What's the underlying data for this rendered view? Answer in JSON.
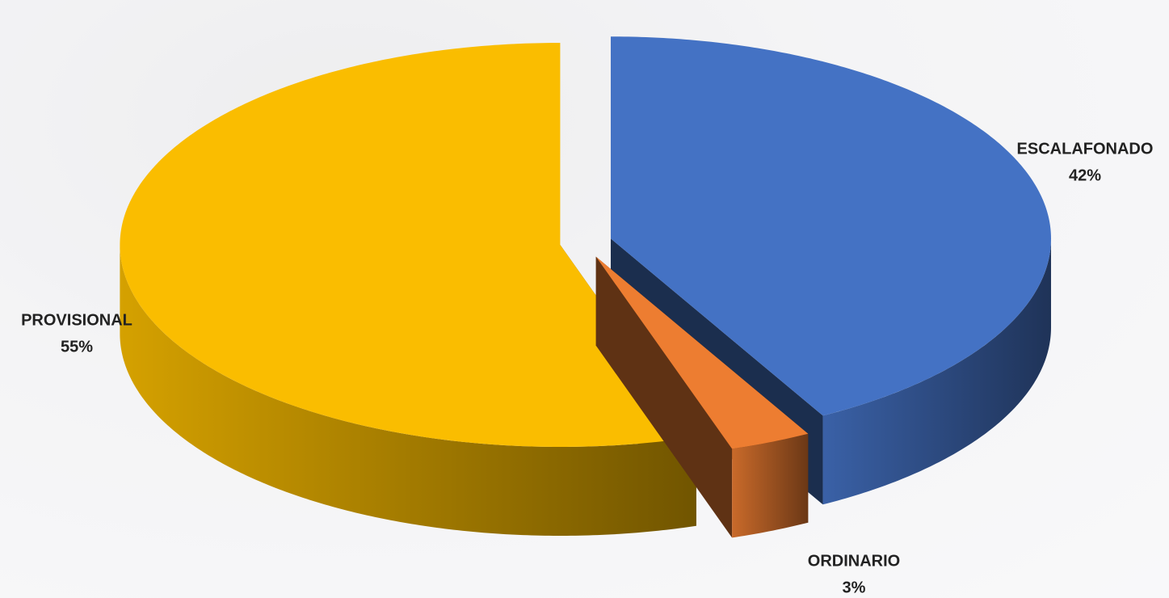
{
  "chart_data": {
    "type": "pie3d",
    "categories": [
      "ESCALAFONADO",
      "ORDINARIO",
      "PROVISIONAL"
    ],
    "values": [
      42,
      3,
      55
    ],
    "value_labels": [
      "42%",
      "3%",
      "55%"
    ],
    "colors": [
      "#4472c4",
      "#ed7d31",
      "#fabd00"
    ]
  }
}
